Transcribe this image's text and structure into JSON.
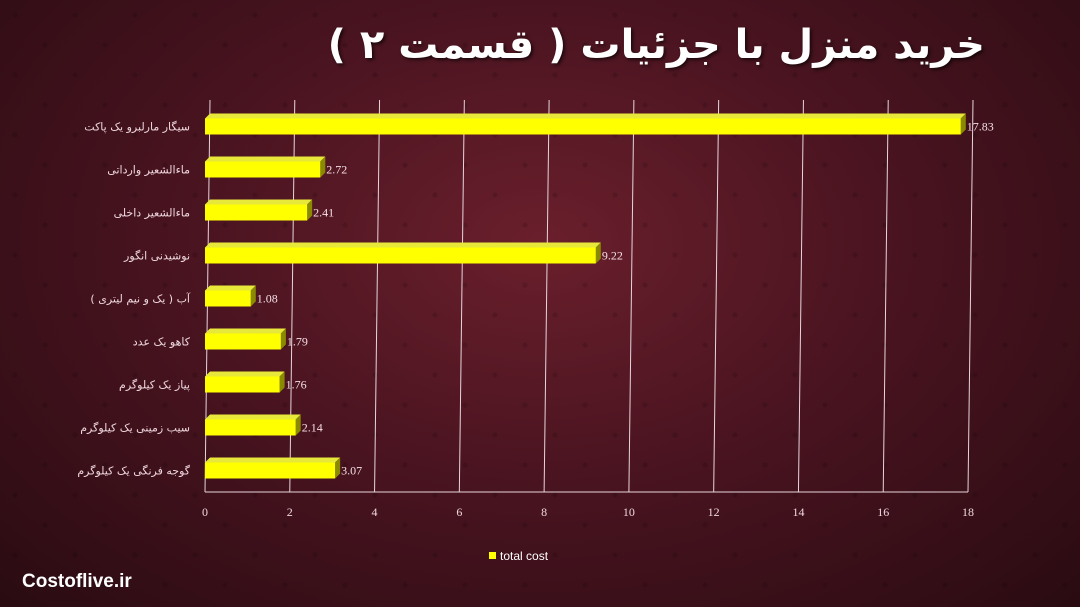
{
  "title": "خرید منزل با جزئیات ( قسمت ۲ )",
  "footer": "Costoflive.ir",
  "chart_data": {
    "type": "bar",
    "orientation": "horizontal",
    "categories": [
      "سیگار مارلبرو یک پاکت",
      "ماءالشعیر وارداتی",
      "ماءالشعیر داخلی",
      "نوشیدنی انگور",
      "آب ( یک و نیم لیتری )",
      "کاهو  یک عدد",
      "پیاز یک کیلوگرم",
      "سیب زمینی یک کیلوگرم",
      "گوجه فرنگی یک کیلوگرم"
    ],
    "series": [
      {
        "name": "total cost",
        "values": [
          17.83,
          2.72,
          2.41,
          9.22,
          1.08,
          1.79,
          1.76,
          2.14,
          3.07
        ],
        "value_labels": [
          "17.83",
          "2.72",
          "2.41",
          "9.22",
          "1.08",
          "1.79",
          "1.76",
          "2.14",
          "3.07"
        ]
      }
    ],
    "xlim": [
      0,
      18
    ],
    "xticks": [
      "0",
      "2",
      "4",
      "6",
      "8",
      "10",
      "12",
      "14",
      "16",
      "18"
    ],
    "grid": true,
    "legend_position": "bottom",
    "colors": {
      "bar": "#ffff00",
      "bar_side": "#8a8a00",
      "grid": "#e8d5dc"
    }
  }
}
